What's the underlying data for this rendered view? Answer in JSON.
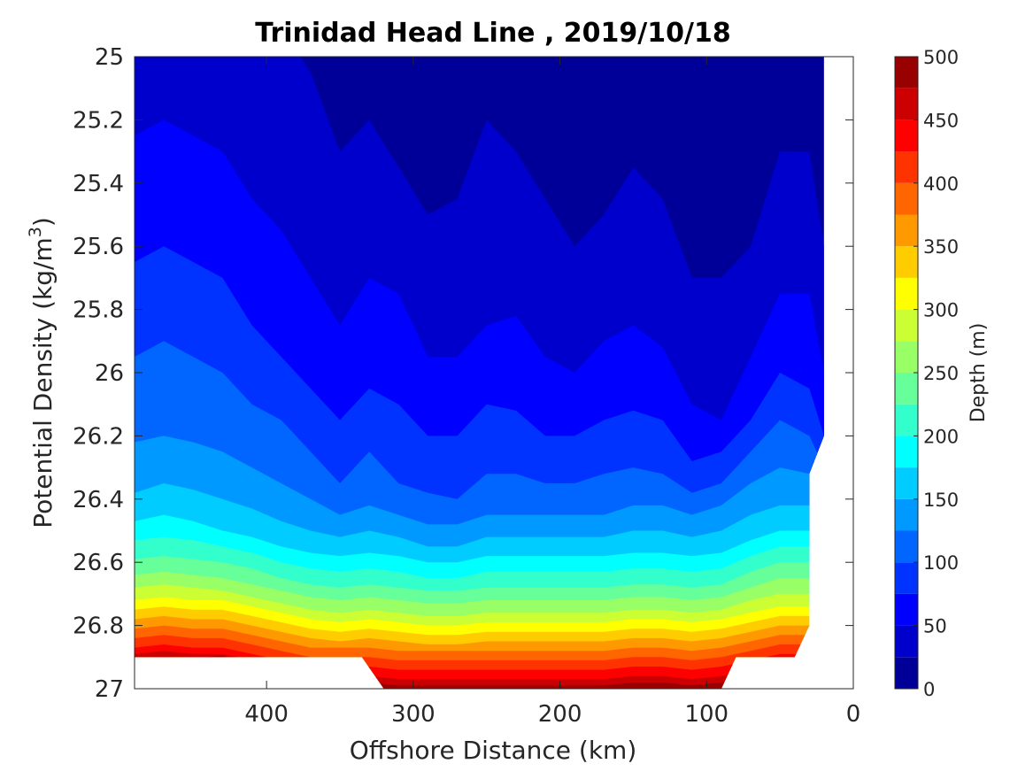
{
  "chart_data": {
    "type": "heatmap",
    "title": "Trinidad Head Line , 2019/10/18",
    "xlabel": "Offshore Distance (km)",
    "ylabel": "Potential Density (kg/m",
    "ylabel_superscript": "3",
    "ylabel_close": ")",
    "xlim": [
      490,
      0
    ],
    "ylim": [
      25,
      27
    ],
    "y_reversed": true,
    "x_reversed": true,
    "xticks": [
      400,
      300,
      200,
      100,
      0
    ],
    "yticks": [
      25,
      25.2,
      25.4,
      25.6,
      25.8,
      26,
      26.2,
      26.4,
      26.6,
      26.8,
      27
    ],
    "ytick_labels": [
      "25",
      "25.2",
      "25.4",
      "25.6",
      "25.8",
      "26",
      "26.2",
      "26.4",
      "26.6",
      "26.8",
      "27"
    ],
    "grid": false,
    "colorbar": {
      "label": "Depth (m)",
      "min": 0,
      "max": 500,
      "step": 25,
      "ticks": [
        0,
        50,
        100,
        150,
        200,
        250,
        300,
        350,
        400,
        450,
        500
      ],
      "colormap": "jet"
    },
    "contour_depths": [
      25,
      50,
      75,
      100,
      125,
      150,
      175,
      200,
      225,
      250,
      275,
      300,
      325,
      350,
      375,
      400,
      425,
      450,
      475
    ],
    "contour_x": [
      490,
      470,
      450,
      430,
      410,
      390,
      370,
      350,
      330,
      310,
      290,
      270,
      250,
      230,
      210,
      190,
      170,
      150,
      130,
      110,
      90,
      70,
      50,
      30,
      20
    ],
    "contour_sigma": [
      [
        24.9,
        24.9,
        24.9,
        24.9,
        24.9,
        24.9,
        25.05,
        25.3,
        25.2,
        25.35,
        25.5,
        25.45,
        25.2,
        25.3,
        25.45,
        25.6,
        25.5,
        25.35,
        25.45,
        25.7,
        25.7,
        25.6,
        25.3,
        25.3,
        25.6
      ],
      [
        25.25,
        25.2,
        25.25,
        25.3,
        25.45,
        25.55,
        25.7,
        25.85,
        25.7,
        25.75,
        25.95,
        25.95,
        25.85,
        25.82,
        25.95,
        26.0,
        25.9,
        25.85,
        25.92,
        26.1,
        26.15,
        25.95,
        25.75,
        25.75,
        26.0
      ],
      [
        25.65,
        25.6,
        25.65,
        25.7,
        25.85,
        25.95,
        26.05,
        26.15,
        26.05,
        26.1,
        26.2,
        26.2,
        26.1,
        26.12,
        26.2,
        26.2,
        26.15,
        26.12,
        26.15,
        26.28,
        26.25,
        26.15,
        26.0,
        26.05,
        26.2
      ],
      [
        25.95,
        25.9,
        25.95,
        26.0,
        26.1,
        26.15,
        26.25,
        26.35,
        26.25,
        26.35,
        26.38,
        26.4,
        26.32,
        26.32,
        26.35,
        26.35,
        26.32,
        26.3,
        26.32,
        26.38,
        26.35,
        26.25,
        26.15,
        26.2,
        26.3
      ],
      [
        26.22,
        26.2,
        26.22,
        26.25,
        26.3,
        26.35,
        26.4,
        26.45,
        26.42,
        26.45,
        26.48,
        26.48,
        26.45,
        26.45,
        26.45,
        26.45,
        26.45,
        26.42,
        26.42,
        26.45,
        26.42,
        26.35,
        26.3,
        26.32,
        26.35
      ],
      [
        26.38,
        26.35,
        26.37,
        26.4,
        26.43,
        26.47,
        26.5,
        26.52,
        26.5,
        26.52,
        26.55,
        26.55,
        26.52,
        26.52,
        26.52,
        26.52,
        26.52,
        26.5,
        26.5,
        26.52,
        26.5,
        26.45,
        26.42,
        26.42,
        26.45
      ],
      [
        26.47,
        26.45,
        26.47,
        26.5,
        26.52,
        26.55,
        26.57,
        26.58,
        26.57,
        26.58,
        26.6,
        26.6,
        26.58,
        26.58,
        26.58,
        26.58,
        26.58,
        26.57,
        26.57,
        26.58,
        26.57,
        26.53,
        26.5,
        26.5,
        26.52
      ],
      [
        26.53,
        26.52,
        26.53,
        26.55,
        26.57,
        26.6,
        26.62,
        26.63,
        26.62,
        26.63,
        26.65,
        26.65,
        26.63,
        26.63,
        26.63,
        26.63,
        26.63,
        26.62,
        26.62,
        26.63,
        26.62,
        26.58,
        26.55,
        26.55,
        26.57
      ],
      [
        26.59,
        26.58,
        26.59,
        26.6,
        26.62,
        26.65,
        26.67,
        26.68,
        26.67,
        26.68,
        26.69,
        26.69,
        26.68,
        26.68,
        26.68,
        26.68,
        26.68,
        26.67,
        26.67,
        26.68,
        26.67,
        26.63,
        26.6,
        26.6,
        26.62
      ],
      [
        26.64,
        26.63,
        26.64,
        26.65,
        26.67,
        26.69,
        26.71,
        26.72,
        26.71,
        26.72,
        26.73,
        26.73,
        26.72,
        26.72,
        26.72,
        26.72,
        26.72,
        26.71,
        26.71,
        26.72,
        26.71,
        26.68,
        26.65,
        26.65,
        26.67
      ],
      [
        26.68,
        26.67,
        26.68,
        26.69,
        26.71,
        26.73,
        26.75,
        26.76,
        26.75,
        26.76,
        26.77,
        26.77,
        26.76,
        26.76,
        26.76,
        26.76,
        26.76,
        26.75,
        26.75,
        26.76,
        26.75,
        26.72,
        26.7,
        26.7,
        26.71
      ],
      [
        26.72,
        26.71,
        26.72,
        26.72,
        26.74,
        26.76,
        26.78,
        26.79,
        26.78,
        26.79,
        26.8,
        26.8,
        26.79,
        26.79,
        26.79,
        26.79,
        26.79,
        26.78,
        26.78,
        26.79,
        26.78,
        26.76,
        26.74,
        26.74,
        26.75
      ],
      [
        26.75,
        26.74,
        26.75,
        26.75,
        26.77,
        26.79,
        26.81,
        26.82,
        26.81,
        26.82,
        26.83,
        26.83,
        26.82,
        26.82,
        26.82,
        26.82,
        26.82,
        26.81,
        26.81,
        26.82,
        26.81,
        26.79,
        26.77,
        26.77,
        26.78
      ],
      [
        26.78,
        26.77,
        26.78,
        26.78,
        26.8,
        26.82,
        26.84,
        26.85,
        26.84,
        26.85,
        26.86,
        26.86,
        26.85,
        26.85,
        26.85,
        26.85,
        26.85,
        26.84,
        26.84,
        26.85,
        26.84,
        26.82,
        26.8,
        26.8,
        26.81
      ],
      [
        26.81,
        26.8,
        26.81,
        26.81,
        26.83,
        26.85,
        26.87,
        26.87,
        26.87,
        26.88,
        26.88,
        26.88,
        26.88,
        26.88,
        26.88,
        26.88,
        26.88,
        26.87,
        26.87,
        26.88,
        26.87,
        26.85,
        26.83,
        26.83,
        26.84
      ],
      [
        26.84,
        26.83,
        26.84,
        26.84,
        26.86,
        26.88,
        26.9,
        26.9,
        26.9,
        26.91,
        26.91,
        26.91,
        26.91,
        26.91,
        26.91,
        26.91,
        26.91,
        26.9,
        26.9,
        26.91,
        26.9,
        26.88,
        26.86,
        26.86,
        26.87
      ],
      [
        26.87,
        26.86,
        26.87,
        26.87,
        26.89,
        26.91,
        26.93,
        26.93,
        26.93,
        26.94,
        26.94,
        26.94,
        26.94,
        26.94,
        26.94,
        26.94,
        26.94,
        26.93,
        26.93,
        26.94,
        26.93,
        26.91,
        26.89,
        26.89,
        26.9
      ],
      [
        26.89,
        26.88,
        26.89,
        26.89,
        26.91,
        26.94,
        26.96,
        26.96,
        26.96,
        26.97,
        26.97,
        26.97,
        26.97,
        26.97,
        26.97,
        26.97,
        26.97,
        26.96,
        26.96,
        26.97,
        26.96,
        26.94,
        26.92,
        26.92,
        26.93
      ],
      [
        26.91,
        26.9,
        26.905,
        26.895,
        26.93,
        26.96,
        26.98,
        26.98,
        26.98,
        26.99,
        26.99,
        26.99,
        26.99,
        26.99,
        26.99,
        26.99,
        26.99,
        26.98,
        26.98,
        26.99,
        26.98,
        26.96,
        26.95,
        26.95,
        26.96
      ]
    ],
    "data_extent": {
      "right_edge": [
        [
          25,
          20
        ],
        [
          26.2,
          20
        ],
        [
          26.32,
          30
        ],
        [
          26.8,
          30
        ],
        [
          26.9,
          40
        ]
      ],
      "bottom_edge": [
        [
          490,
          26.9
        ],
        [
          335,
          26.9
        ],
        [
          320,
          27
        ],
        [
          90,
          27
        ],
        [
          80,
          26.9
        ],
        [
          40,
          26.9
        ]
      ]
    }
  }
}
